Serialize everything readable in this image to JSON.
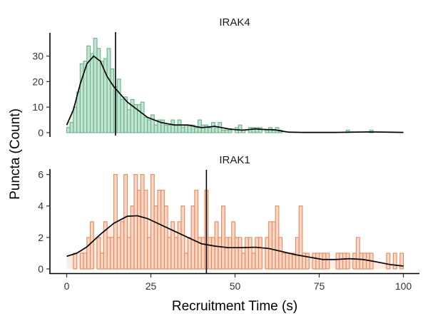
{
  "chart_data": {
    "type": "histogram",
    "xlabel": "Recruitment Time (s)",
    "ylabel": "Puncta (Count)",
    "xlim": [
      -2.5,
      102
    ],
    "x_ticks": [
      0,
      25,
      50,
      75,
      100
    ],
    "bin_width": 1,
    "legend": "none",
    "grid": false,
    "panels": [
      {
        "title": "IRAK4",
        "color": "#66b58b",
        "fill": "#c3e3d0",
        "ylim": [
          0,
          38
        ],
        "y_ticks": [
          0,
          10,
          20,
          30
        ],
        "vline": 14.5,
        "bin_starts": [
          0,
          1,
          2,
          3,
          4,
          5,
          6,
          7,
          8,
          9,
          10,
          11,
          12,
          13,
          14,
          15,
          16,
          17,
          18,
          19,
          20,
          21,
          22,
          23,
          24,
          25,
          26,
          27,
          28,
          29,
          30,
          31,
          32,
          33,
          34,
          35,
          36,
          37,
          38,
          39,
          40,
          41,
          42,
          43,
          44,
          45,
          46,
          47,
          48,
          49,
          50,
          51,
          52,
          53,
          54,
          55,
          56,
          57,
          58,
          59,
          60,
          61,
          62,
          63,
          64,
          65,
          66,
          67,
          68,
          69,
          70,
          71,
          72,
          73,
          74,
          75,
          76,
          77,
          78,
          79,
          80,
          81,
          82,
          83,
          84,
          85,
          86,
          87,
          88,
          89,
          90,
          91,
          92,
          93,
          94,
          95,
          96,
          97,
          98,
          99
        ],
        "counts": [
          2,
          4,
          10,
          16,
          27,
          28,
          34,
          31,
          37,
          33,
          28,
          29,
          33,
          25,
          18,
          21,
          13,
          14,
          9,
          13,
          11,
          11,
          12,
          6,
          5,
          7,
          3,
          5,
          5,
          3,
          3,
          5,
          3,
          5,
          2,
          3,
          3,
          3,
          2,
          5,
          3,
          3,
          2,
          4,
          2,
          4,
          1,
          1,
          1,
          0,
          2,
          3,
          1,
          0,
          2,
          2,
          2,
          2,
          0,
          1,
          2,
          1,
          2,
          1,
          0,
          0,
          0,
          0,
          0,
          0,
          0,
          0,
          0,
          0,
          0,
          0,
          0,
          0,
          0,
          0,
          0,
          0,
          0,
          1,
          0,
          0,
          0,
          0,
          0,
          0,
          1,
          0,
          0,
          0,
          0,
          0,
          0,
          0,
          0,
          0
        ],
        "density": [
          [
            0,
            3
          ],
          [
            2,
            9
          ],
          [
            4,
            19
          ],
          [
            6,
            27
          ],
          [
            8,
            30
          ],
          [
            10,
            28
          ],
          [
            12,
            22
          ],
          [
            14,
            18
          ],
          [
            16,
            15
          ],
          [
            18,
            12
          ],
          [
            20,
            10
          ],
          [
            22,
            8
          ],
          [
            24,
            6
          ],
          [
            26,
            5
          ],
          [
            28,
            4
          ],
          [
            30,
            3.5
          ],
          [
            32,
            3
          ],
          [
            34,
            3
          ],
          [
            36,
            3
          ],
          [
            38,
            2.5
          ],
          [
            40,
            2
          ],
          [
            42,
            2.2
          ],
          [
            44,
            2.5
          ],
          [
            46,
            2
          ],
          [
            48,
            1.5
          ],
          [
            50,
            1.2
          ],
          [
            52,
            1
          ],
          [
            54,
            1.2
          ],
          [
            56,
            1.5
          ],
          [
            58,
            1.3
          ],
          [
            60,
            1.2
          ],
          [
            62,
            1.1
          ],
          [
            64,
            0.6
          ],
          [
            66,
            0.2
          ],
          [
            70,
            0.1
          ],
          [
            80,
            0.1
          ],
          [
            85,
            0.2
          ],
          [
            90,
            0.3
          ],
          [
            95,
            0.2
          ],
          [
            100,
            0.1
          ]
        ]
      },
      {
        "title": "IRAK1",
        "color": "#e58a5a",
        "fill": "#f8d5c4",
        "ylim": [
          0,
          6.3
        ],
        "y_ticks": [
          0,
          2,
          4,
          6
        ],
        "vline": 41.5,
        "bin_starts": [
          0,
          1,
          2,
          3,
          4,
          5,
          6,
          7,
          8,
          9,
          10,
          11,
          12,
          13,
          14,
          15,
          16,
          17,
          18,
          19,
          20,
          21,
          22,
          23,
          24,
          25,
          26,
          27,
          28,
          29,
          30,
          31,
          32,
          33,
          34,
          35,
          36,
          37,
          38,
          39,
          40,
          41,
          42,
          43,
          44,
          45,
          46,
          47,
          48,
          49,
          50,
          51,
          52,
          53,
          54,
          55,
          56,
          57,
          58,
          59,
          60,
          61,
          62,
          63,
          64,
          65,
          66,
          67,
          68,
          69,
          70,
          71,
          72,
          73,
          74,
          75,
          76,
          77,
          78,
          79,
          80,
          81,
          82,
          83,
          84,
          85,
          86,
          87,
          88,
          89,
          90,
          91,
          92,
          93,
          94,
          95,
          96,
          97,
          98,
          99
        ],
        "counts": [
          0,
          0,
          1,
          0,
          1,
          1,
          2,
          3,
          0,
          2,
          1,
          3,
          2,
          2,
          6,
          2,
          3,
          6,
          2,
          4,
          6,
          5,
          6,
          5,
          2,
          6,
          4,
          5,
          5,
          4,
          2,
          3,
          2,
          3,
          4,
          1,
          2,
          4,
          5,
          2,
          2,
          5,
          2,
          2,
          3,
          2,
          4,
          2,
          2,
          3,
          2,
          2,
          1,
          2,
          2,
          1,
          2,
          2,
          0,
          2,
          3,
          3,
          4,
          2,
          1,
          1,
          1,
          1,
          2,
          4,
          1,
          1,
          0,
          1,
          1,
          1,
          1,
          1,
          0,
          0,
          1,
          1,
          1,
          1,
          0,
          1,
          2,
          1,
          1,
          1,
          1,
          0,
          0,
          0,
          0,
          1,
          0,
          1,
          0,
          1
        ],
        "density": [
          [
            0,
            0.8
          ],
          [
            3,
            1.0
          ],
          [
            6,
            1.4
          ],
          [
            10,
            2.2
          ],
          [
            14,
            2.9
          ],
          [
            18,
            3.35
          ],
          [
            21,
            3.38
          ],
          [
            24,
            3.2
          ],
          [
            28,
            2.8
          ],
          [
            32,
            2.4
          ],
          [
            36,
            2.0
          ],
          [
            40,
            1.6
          ],
          [
            44,
            1.45
          ],
          [
            48,
            1.35
          ],
          [
            52,
            1.35
          ],
          [
            56,
            1.38
          ],
          [
            60,
            1.3
          ],
          [
            64,
            1.1
          ],
          [
            68,
            0.9
          ],
          [
            72,
            0.75
          ],
          [
            76,
            0.6
          ],
          [
            80,
            0.6
          ],
          [
            84,
            0.65
          ],
          [
            88,
            0.6
          ],
          [
            92,
            0.45
          ],
          [
            96,
            0.28
          ],
          [
            100,
            0.18
          ]
        ]
      }
    ]
  }
}
